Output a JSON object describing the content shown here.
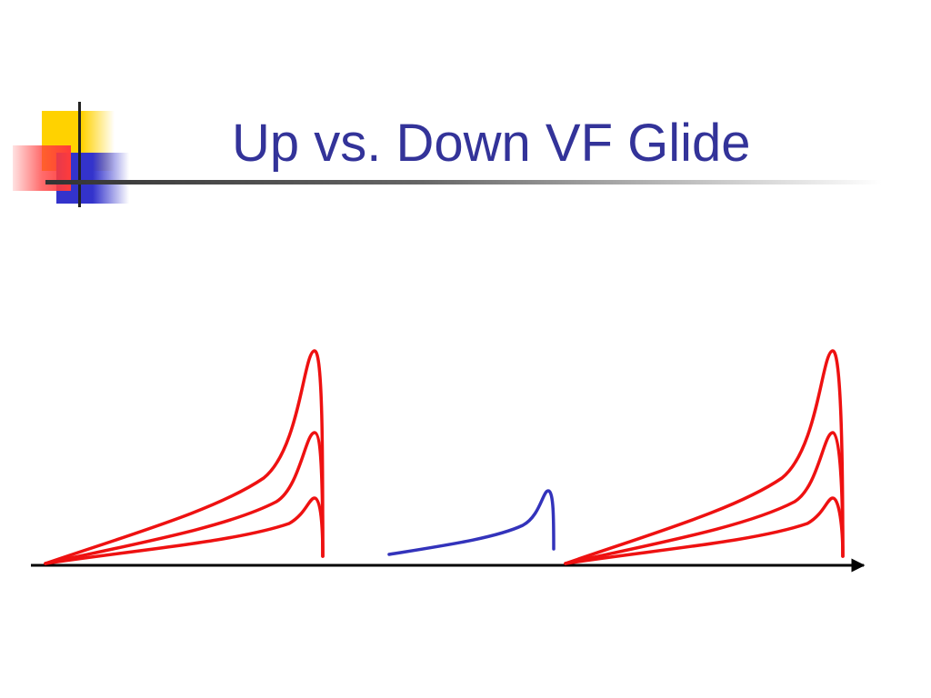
{
  "slide": {
    "title": "Up vs. Down VF Glide"
  },
  "colors": {
    "title": "#333399",
    "ornament_yellow": "#ffd200",
    "ornament_red": "#ff3b3b",
    "ornament_blue": "#3333cc",
    "rule": "#333333",
    "up_glide": "#ee1111",
    "down_glide": "#3333bb",
    "time_axis": "#000000"
  },
  "diagram": {
    "glide_groups": [
      {
        "name": "up-glide-group-left",
        "direction": "up",
        "pulse_count": 3
      },
      {
        "name": "down-glide",
        "direction": "down",
        "pulse_count": 1
      },
      {
        "name": "up-glide-group-right",
        "direction": "up",
        "pulse_count": 3
      }
    ]
  }
}
